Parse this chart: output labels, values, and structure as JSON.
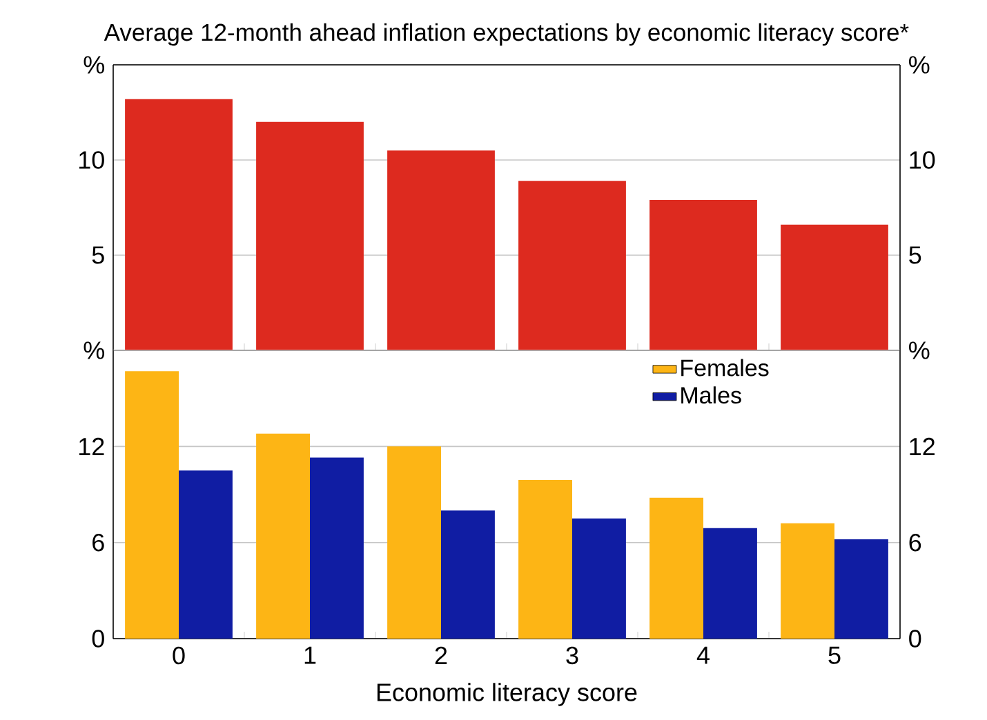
{
  "chart_data": [
    {
      "type": "bar",
      "title": "Average 12-month ahead inflation expectations by economic literacy score*",
      "categories": [
        "0",
        "1",
        "2",
        "3",
        "4",
        "5"
      ],
      "values": [
        13.2,
        12.0,
        10.5,
        8.9,
        7.9,
        6.6
      ],
      "color": "#dd2a1f",
      "ylim": [
        0,
        15
      ],
      "yticks": [
        5,
        10,
        {
          "value": 15,
          "label": "%"
        }
      ],
      "y2lim": [
        0,
        15
      ],
      "y2ticks": [
        5,
        10,
        {
          "value": 15,
          "label": "%"
        }
      ],
      "grid": "y",
      "tick_labels": "y"
    },
    {
      "type": "bar",
      "xlabel": "Economic literacy score",
      "categories": [
        "0",
        "1",
        "2",
        "3",
        "4",
        "5"
      ],
      "series": [
        {
          "name": "Females",
          "color": "#fdb515",
          "values": [
            16.7,
            12.8,
            12.0,
            9.9,
            8.8,
            7.2
          ]
        },
        {
          "name": "Males",
          "color": "#101da3",
          "values": [
            10.5,
            11.3,
            8.0,
            7.5,
            6.9,
            6.2
          ]
        }
      ],
      "ylim": [
        0,
        18
      ],
      "yticks": [
        0,
        6,
        12,
        {
          "value": 18,
          "label": "%"
        }
      ],
      "y2lim": [
        0,
        18
      ],
      "y2ticks": [
        0,
        6,
        12,
        {
          "value": 18,
          "label": "%"
        }
      ],
      "grid": "y",
      "legend": "top right"
    }
  ]
}
